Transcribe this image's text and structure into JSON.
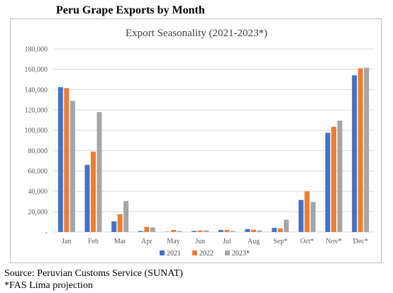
{
  "figure_title": "Peru Grape Exports by Month",
  "source": "Source: Peruvian Customs Service (SUNAT)",
  "note": "*FAS Lima projection",
  "colors": {
    "s2021": "#4472C4",
    "s2022": "#ED7D31",
    "s2023": "#A5A5A5",
    "grid": "#d9d9d9"
  },
  "chart_data": {
    "type": "bar",
    "title": "Export Seasonality  (2021-2023*)",
    "xlabel": "",
    "ylabel": "",
    "ylim": [
      0,
      180000
    ],
    "yticks": [
      0,
      20000,
      40000,
      60000,
      80000,
      100000,
      120000,
      140000,
      160000,
      180000
    ],
    "ytick_labels": [
      "-",
      "20,000",
      "40,000",
      "60,000",
      "80,000",
      "100,000",
      "120,000",
      "140,000",
      "160,000",
      "180,000"
    ],
    "categories": [
      "Jan",
      "Feb",
      "Mar",
      "Apr",
      "May",
      "Jun",
      "Jul",
      "Aug",
      "Sep*",
      "Oct*",
      "Nov*",
      "Dec*"
    ],
    "series": [
      {
        "name": "2021",
        "values": [
          142500,
          66000,
          10500,
          1000,
          300,
          1000,
          2000,
          2800,
          4000,
          31500,
          97500,
          154000
        ]
      },
      {
        "name": "2022",
        "values": [
          141500,
          79000,
          17500,
          5000,
          2000,
          1500,
          2000,
          2200,
          3500,
          40000,
          103500,
          161000
        ]
      },
      {
        "name": "2023*",
        "values": [
          129000,
          118000,
          30500,
          4500,
          1000,
          1500,
          1000,
          1500,
          12000,
          29500,
          109500,
          161500
        ]
      }
    ],
    "grid": true,
    "legend": "bottom"
  }
}
